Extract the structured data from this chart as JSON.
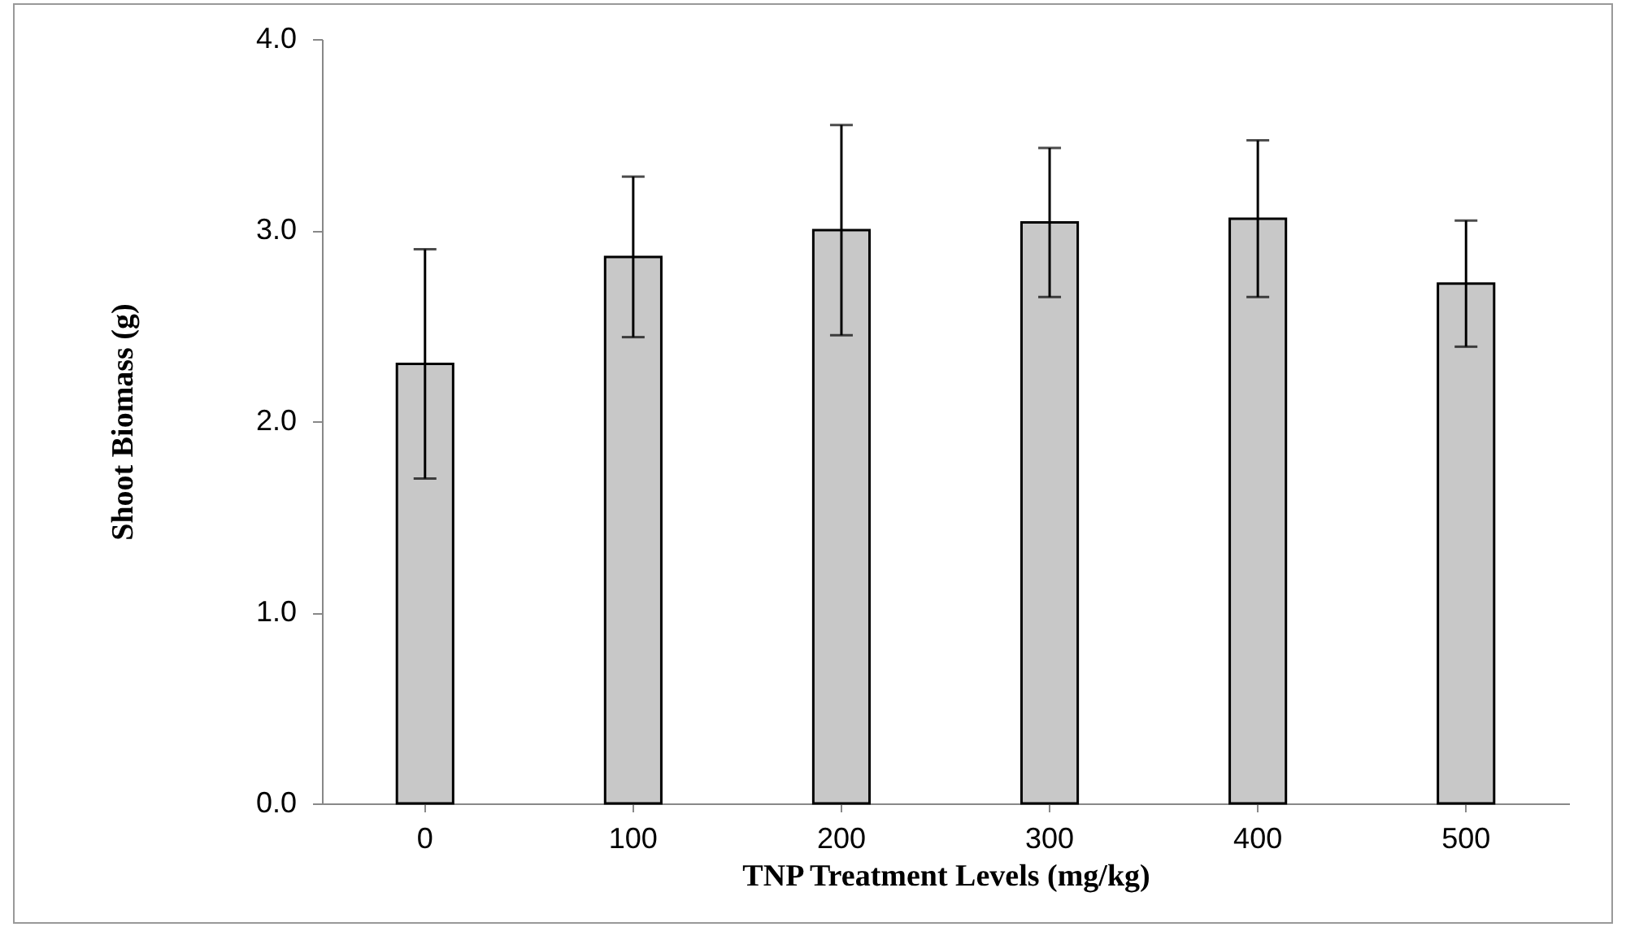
{
  "chart_data": {
    "type": "bar",
    "xlabel": "TNP Treatment Levels (mg/kg)",
    "ylabel": "Shoot Biomass (g)",
    "categories": [
      "0",
      "100",
      "200",
      "300",
      "400",
      "500"
    ],
    "values": [
      2.3,
      2.86,
      3.0,
      3.04,
      3.06,
      2.72
    ],
    "errors": [
      0.6,
      0.42,
      0.55,
      0.39,
      0.41,
      0.33
    ],
    "color": "#c8c8c8",
    "ylim": [
      0,
      4
    ],
    "yticks": [
      {
        "value": 0,
        "label": "0.0"
      },
      {
        "value": 1,
        "label": "1.0"
      },
      {
        "value": 2,
        "label": "2.0"
      },
      {
        "value": 3,
        "label": "3.0"
      },
      {
        "value": 4,
        "label": "4.0"
      }
    ],
    "grid": false
  }
}
